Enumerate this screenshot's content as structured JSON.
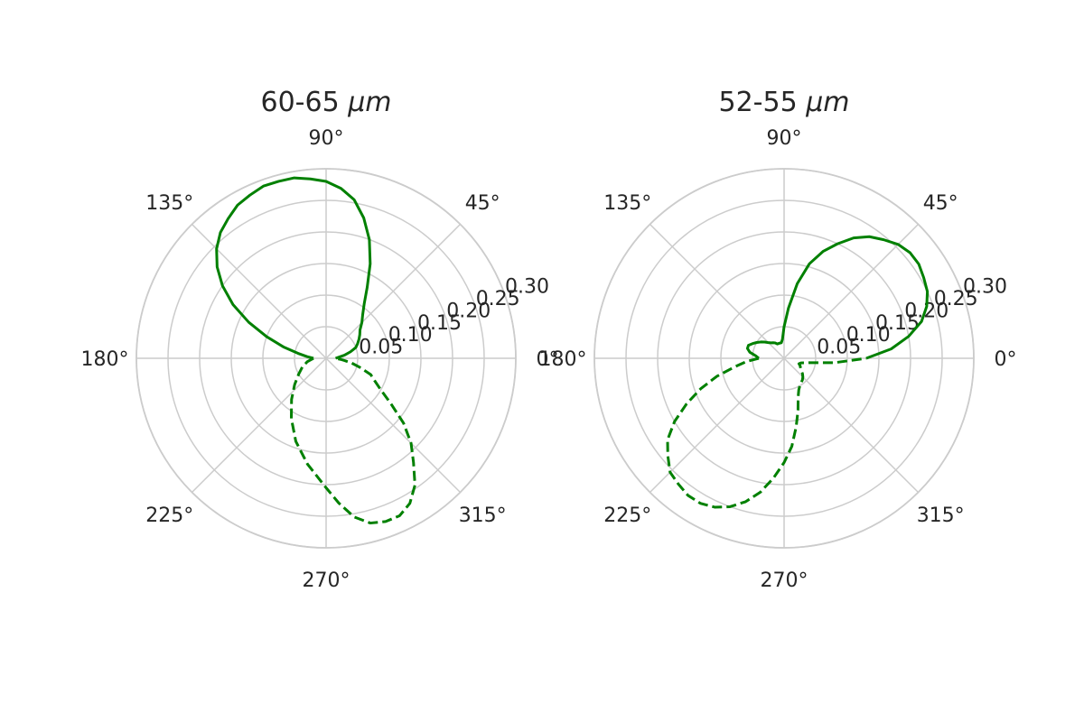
{
  "chart_data": [
    {
      "type": "polar_line",
      "title": "60-65 μm",
      "title_prefix": "60-65 ",
      "title_unit": "μm",
      "angle_unit": "degrees",
      "angular_ticks": [
        "0°",
        "45°",
        "90°",
        "135°",
        "180°",
        "225°",
        "270°",
        "315°"
      ],
      "radial_ticks": [
        "0.05",
        "0.10",
        "0.15",
        "0.20",
        "0.25",
        "0.30"
      ],
      "radial_tick_angle_deg": 22.5,
      "rlim": [
        0,
        0.3
      ],
      "grid": true,
      "series": [
        {
          "style": "solid",
          "color": "#008000",
          "theta": [
            0,
            5,
            10,
            15,
            20,
            25,
            30,
            35,
            40,
            45,
            50,
            55,
            60,
            65,
            70,
            75,
            80,
            85,
            90,
            95,
            100,
            105,
            110,
            115,
            120,
            125,
            130,
            135,
            140,
            145,
            150,
            155,
            160,
            165,
            170,
            175,
            180
          ],
          "r": [
            0.015,
            0.02,
            0.03,
            0.04,
            0.05,
            0.055,
            0.06,
            0.065,
            0.07,
            0.08,
            0.09,
            0.105,
            0.13,
            0.165,
            0.2,
            0.23,
            0.255,
            0.27,
            0.28,
            0.285,
            0.29,
            0.29,
            0.29,
            0.285,
            0.28,
            0.27,
            0.26,
            0.245,
            0.225,
            0.2,
            0.17,
            0.135,
            0.1,
            0.07,
            0.045,
            0.03,
            0.02
          ]
        },
        {
          "style": "dashed",
          "color": "#008000",
          "theta": [
            180,
            190,
            200,
            210,
            220,
            230,
            240,
            250,
            260,
            270,
            275,
            280,
            285,
            290,
            295,
            300,
            305,
            310,
            315,
            320,
            325,
            330,
            335,
            340,
            345,
            350,
            355,
            360
          ],
          "r": [
            0.02,
            0.03,
            0.04,
            0.05,
            0.065,
            0.085,
            0.11,
            0.14,
            0.17,
            0.205,
            0.23,
            0.255,
            0.27,
            0.275,
            0.275,
            0.265,
            0.245,
            0.215,
            0.19,
            0.16,
            0.125,
            0.1,
            0.085,
            0.075,
            0.055,
            0.04,
            0.025,
            0.015
          ]
        }
      ]
    },
    {
      "type": "polar_line",
      "title": "52-55 μm",
      "title_prefix": "52-55 ",
      "title_unit": "μm",
      "angle_unit": "degrees",
      "angular_ticks": [
        "0°",
        "45°",
        "90°",
        "135°",
        "180°",
        "225°",
        "270°",
        "315°"
      ],
      "radial_ticks": [
        "0.05",
        "0.10",
        "0.15",
        "0.20",
        "0.25",
        "0.30"
      ],
      "radial_tick_angle_deg": 22.5,
      "rlim": [
        0,
        0.3
      ],
      "grid": true,
      "series": [
        {
          "style": "solid",
          "color": "#008000",
          "theta": [
            0,
            5,
            10,
            15,
            20,
            25,
            30,
            35,
            40,
            45,
            50,
            55,
            60,
            65,
            70,
            75,
            80,
            85,
            90,
            95,
            100,
            105,
            110,
            115,
            120,
            125,
            130,
            135,
            140,
            145,
            150,
            155,
            160,
            165,
            170,
            175,
            180
          ],
          "r": [
            0.13,
            0.17,
            0.2,
            0.225,
            0.24,
            0.25,
            0.255,
            0.26,
            0.26,
            0.255,
            0.245,
            0.235,
            0.22,
            0.2,
            0.18,
            0.155,
            0.12,
            0.08,
            0.05,
            0.03,
            0.025,
            0.025,
            0.025,
            0.025,
            0.028,
            0.03,
            0.032,
            0.035,
            0.04,
            0.045,
            0.05,
            0.055,
            0.06,
            0.06,
            0.055,
            0.045,
            0.04
          ]
        },
        {
          "style": "dashed",
          "color": "#008000",
          "theta": [
            180,
            185,
            190,
            195,
            200,
            205,
            210,
            215,
            220,
            225,
            230,
            235,
            240,
            245,
            250,
            255,
            260,
            265,
            270,
            275,
            280,
            285,
            290,
            295,
            300,
            305,
            310,
            315,
            320,
            325,
            330,
            335,
            340,
            345,
            350,
            355,
            360
          ],
          "r": [
            0.04,
            0.06,
            0.08,
            0.11,
            0.14,
            0.17,
            0.2,
            0.225,
            0.24,
            0.255,
            0.26,
            0.265,
            0.265,
            0.26,
            0.25,
            0.235,
            0.215,
            0.19,
            0.165,
            0.14,
            0.11,
            0.085,
            0.065,
            0.055,
            0.05,
            0.047,
            0.045,
            0.042,
            0.038,
            0.033,
            0.03,
            0.028,
            0.025,
            0.028,
            0.04,
            0.08,
            0.13
          ]
        }
      ]
    }
  ]
}
